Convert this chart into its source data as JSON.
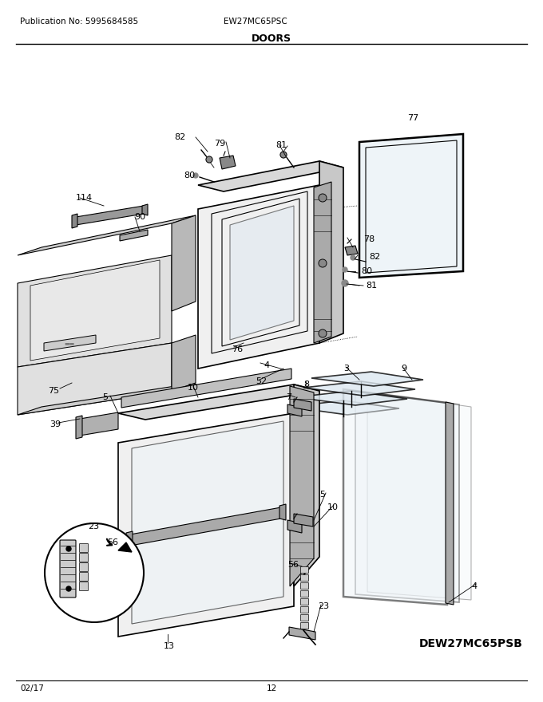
{
  "title": "DOORS",
  "pub_no": "Publication No: 5995684585",
  "model": "EW27MC65PSC",
  "model_alt": "DEW27MC65PSB",
  "date": "02/17",
  "page": "12",
  "bg_color": "#ffffff",
  "line_color": "#000000",
  "title_fontsize": 9,
  "annotation_fontsize": 8,
  "header_fontsize": 7.5,
  "footer_fontsize": 7.5,
  "bold_model_fontsize": 10
}
